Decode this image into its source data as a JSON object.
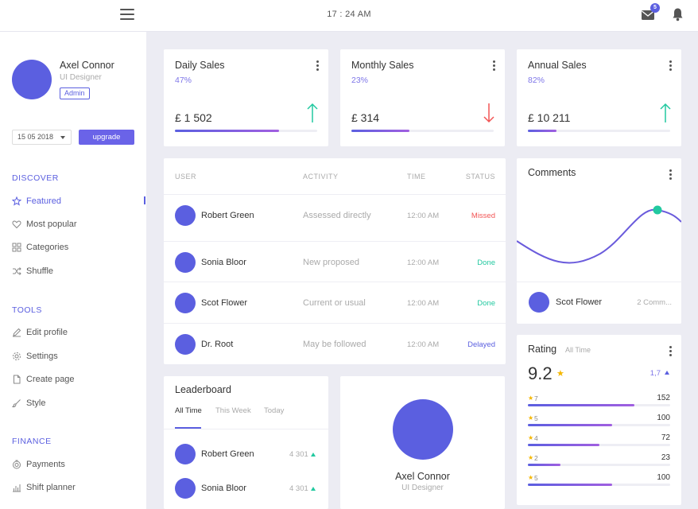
{
  "topbar": {
    "time": "17 : 24 AM",
    "mail_count": "5"
  },
  "sidebar": {
    "user": {
      "name": "Axel Connor",
      "role": "UI Designer",
      "badge": "Admin"
    },
    "date": "15 05 2018",
    "upgrade_label": "upgrade",
    "sections": [
      {
        "title": "DISCOVER",
        "items": [
          {
            "label": "Featured",
            "icon": "star-icon"
          },
          {
            "label": "Most popular",
            "icon": "heart-icon"
          },
          {
            "label": "Categories",
            "icon": "grid-icon"
          },
          {
            "label": "Shuffle",
            "icon": "shuffle-icon"
          }
        ]
      },
      {
        "title": "TOOLS",
        "items": [
          {
            "label": "Edit profile",
            "icon": "pencil-icon"
          },
          {
            "label": "Settings",
            "icon": "gear-icon"
          },
          {
            "label": "Create page",
            "icon": "file-icon"
          },
          {
            "label": "Style",
            "icon": "brush-icon"
          }
        ]
      },
      {
        "title": "FINANCE",
        "items": [
          {
            "label": "Payments",
            "icon": "coins-icon"
          },
          {
            "label": "Shift planner",
            "icon": "bar-chart-icon"
          }
        ]
      }
    ]
  },
  "sales": [
    {
      "title": "Daily Sales",
      "percent": "47%",
      "fill_fraction": 0.73,
      "amount": "£ 1 502",
      "trend": "up",
      "trend_color": "#22c9a0"
    },
    {
      "title": "Monthly Sales",
      "percent": "23%",
      "fill_fraction": 0.41,
      "amount": "£ 314",
      "trend": "down",
      "trend_color": "#f25555"
    },
    {
      "title": "Annual Sales",
      "percent": "82%",
      "fill_fraction": 0.2,
      "amount": "£ 10 211",
      "trend": "up",
      "trend_color": "#22c9a0"
    }
  ],
  "activity": {
    "headers": {
      "user": "USER",
      "activity": "ACTIVITY",
      "time": "TIME",
      "status": "STATUS"
    },
    "rows": [
      {
        "user": "Robert Green",
        "activity": "Assessed directly",
        "time": "12:00 AM",
        "status": "Missed",
        "status_color": "#f25555"
      },
      {
        "user": "Sonia Bloor",
        "activity": "New proposed",
        "time": "12:00 AM",
        "status": "Done",
        "status_color": "#22c9a0"
      },
      {
        "user": "Scot Flower",
        "activity": "Current or usual",
        "time": "12:00 AM",
        "status": "Done",
        "status_color": "#22c9a0"
      },
      {
        "user": "Dr. Root",
        "activity": "May be followed",
        "time": "12:00 AM",
        "status": "Delayed",
        "status_color": "#5b5fe0"
      }
    ]
  },
  "comments": {
    "title": "Comments",
    "user": "Scot Flower",
    "count": "2 Comm..."
  },
  "leaderboard": {
    "title": "Leaderboard",
    "tabs": [
      "All Time",
      "This Week",
      "Today"
    ],
    "rows": [
      {
        "name": "Robert Green",
        "score": "4 301"
      },
      {
        "name": "Sonia Bloor",
        "score": "4 301"
      }
    ]
  },
  "profile": {
    "name": "Axel Connor",
    "role": "UI Designer"
  },
  "rating": {
    "title": "Rating",
    "subtitle": "All Time",
    "value": "9.2",
    "delta": "1,7",
    "rows": [
      {
        "level": "7",
        "count": "152",
        "fill_fraction": 0.75
      },
      {
        "level": "5",
        "count": "100",
        "fill_fraction": 0.59
      },
      {
        "level": "4",
        "count": "72",
        "fill_fraction": 0.5
      },
      {
        "level": "2",
        "count": "23",
        "fill_fraction": 0.23
      },
      {
        "level": "5",
        "count": "100",
        "fill_fraction": 0.59
      }
    ]
  }
}
